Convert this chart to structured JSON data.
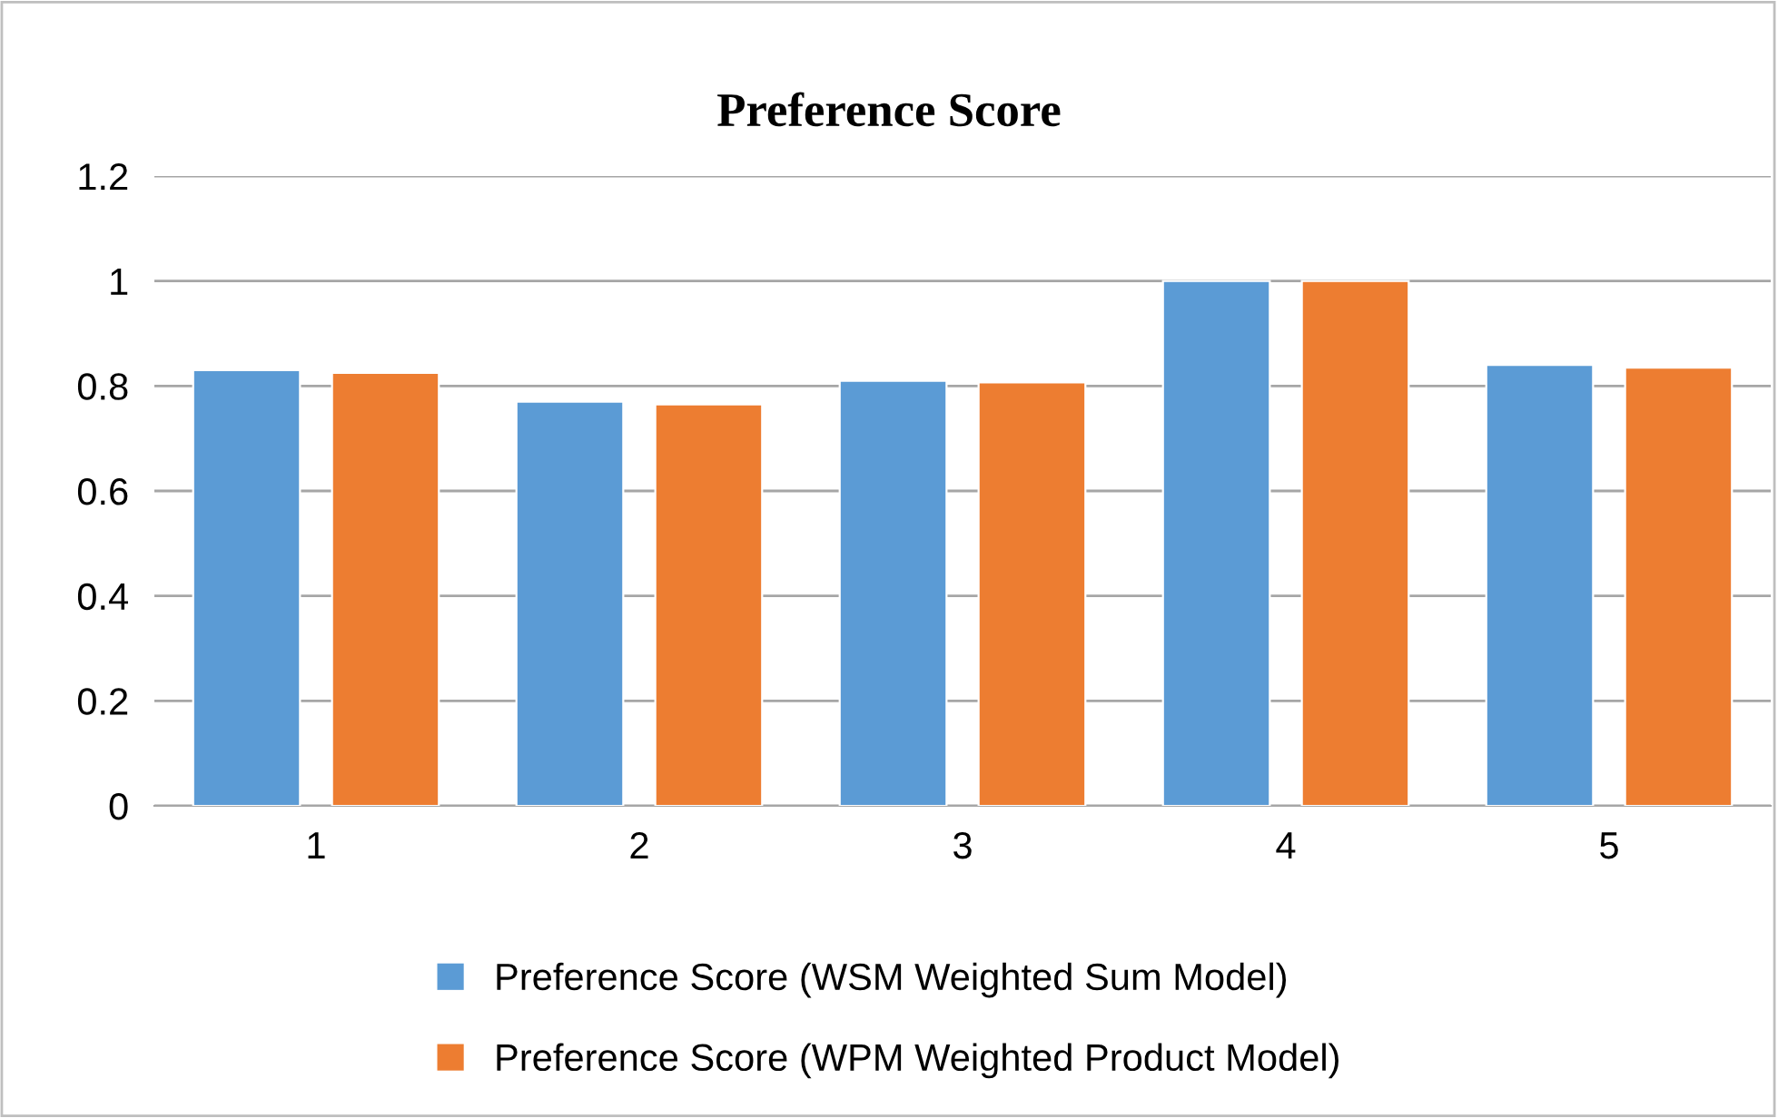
{
  "chart_data": {
    "type": "bar",
    "title": "Preference Score",
    "categories": [
      "1",
      "2",
      "3",
      "4",
      "5"
    ],
    "series": [
      {
        "name": "Preference Score (WSM Weighted Sum Model)",
        "color": "#5b9bd5",
        "values": [
          0.83,
          0.77,
          0.81,
          1.0,
          0.84
        ]
      },
      {
        "name": "Preference Score (WPM Weighted Product Model)",
        "color": "#ed7d31",
        "values": [
          0.825,
          0.765,
          0.807,
          1.0,
          0.835
        ]
      }
    ],
    "ylim": [
      0,
      1.2
    ],
    "yticks": [
      0,
      0.2,
      0.4,
      0.6,
      0.8,
      1,
      1.2
    ],
    "grid": "y",
    "legend": "bottom"
  }
}
